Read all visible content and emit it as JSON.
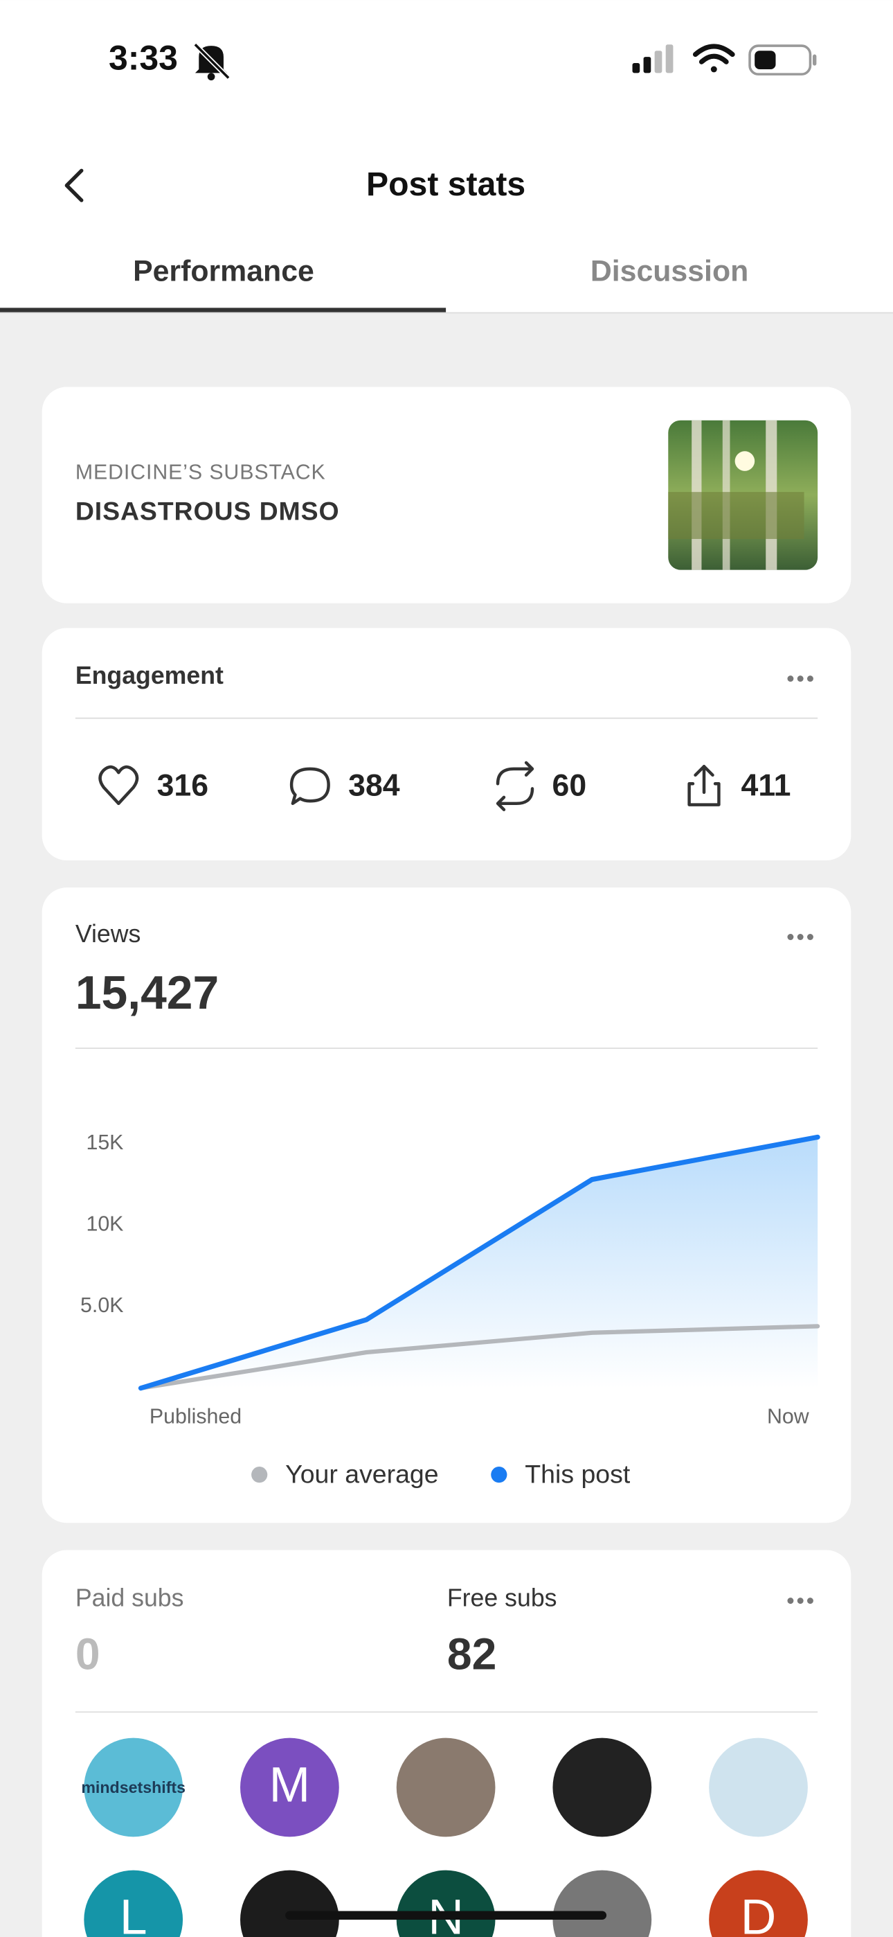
{
  "status_bar": {
    "time": "3:33"
  },
  "header": {
    "title": "Post stats",
    "tabs": [
      "Performance",
      "Discussion"
    ],
    "active_tab": 0
  },
  "post": {
    "publication": "MEDICINE’S SUBSTACK",
    "title": "DISASTROUS DMSO"
  },
  "engagement": {
    "title": "Engagement",
    "likes": 316,
    "comments": 384,
    "restacks": 60,
    "shares": 411
  },
  "views": {
    "label": "Views",
    "total": "15,427"
  },
  "chart_data": {
    "type": "line",
    "categories": [
      "Published",
      null,
      null,
      "Now"
    ],
    "series": [
      {
        "name": "Your average",
        "color": "#b4b7bb",
        "values": [
          0,
          2200,
          3400,
          3800
        ]
      },
      {
        "name": "This post",
        "color": "#1a7cf2",
        "values": [
          0,
          4200,
          12800,
          15400
        ]
      }
    ],
    "ylim": [
      0,
      16000
    ],
    "yticks": [
      {
        "value": 5000,
        "label": "5.0K"
      },
      {
        "value": 10000,
        "label": "10K"
      },
      {
        "value": 15000,
        "label": "15K"
      }
    ],
    "grid": false
  },
  "subs": {
    "paid_label": "Paid subs",
    "paid": 0,
    "free_label": "Free subs",
    "free": 82,
    "avatars": [
      {
        "label": "mindsetshifts",
        "color": "#5bbcd6"
      },
      {
        "label": "M",
        "color": "#7b4fc0"
      },
      {
        "color": "#8a7a6e"
      },
      {
        "color": "#222222"
      },
      {
        "color": "#cfe3ee"
      },
      {
        "label": "L",
        "color": "#1595a8"
      },
      {
        "color": "#1c1c1c"
      },
      {
        "label": "N",
        "color": "#0c4e3f"
      },
      {
        "color": "#777777"
      },
      {
        "label": "D",
        "color": "#c8401c"
      }
    ]
  }
}
